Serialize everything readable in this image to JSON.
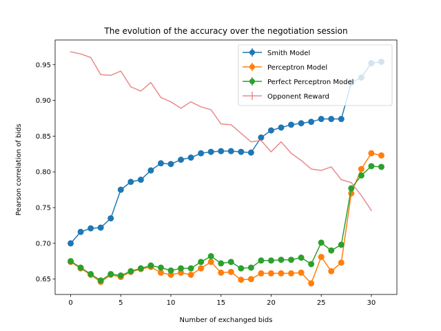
{
  "chart_data": {
    "type": "line",
    "title": "The evolution of the accuracy over the negotiation session",
    "xlabel": "Number of exchanged bids",
    "ylabel": "Pearson correlation of bids",
    "xlim": [
      -1.55,
      32.55
    ],
    "ylim": [
      0.6285,
      0.9845
    ],
    "xticks": [
      0,
      5,
      10,
      15,
      20,
      25,
      30
    ],
    "yticks": [
      0.65,
      0.7,
      0.75,
      0.8,
      0.85,
      0.9,
      0.95
    ],
    "ytick_labels": [
      "0.65",
      "0.70",
      "0.75",
      "0.80",
      "0.85",
      "0.90",
      "0.95"
    ],
    "grid": false,
    "legend_position": "top-right",
    "series": [
      {
        "name": "Smith Model",
        "color": "#1f77b4",
        "marker": "circle",
        "x": [
          0,
          1,
          2,
          3,
          4,
          5,
          6,
          7,
          8,
          9,
          10,
          11,
          12,
          13,
          14,
          15,
          16,
          17,
          18,
          19,
          20,
          21,
          22,
          23,
          24,
          25,
          26,
          27,
          28,
          29,
          30,
          31
        ],
        "values": [
          0.7,
          0.716,
          0.721,
          0.722,
          0.735,
          0.775,
          0.786,
          0.789,
          0.802,
          0.812,
          0.811,
          0.817,
          0.82,
          0.826,
          0.828,
          0.829,
          0.829,
          0.828,
          0.827,
          0.848,
          0.858,
          0.862,
          0.866,
          0.868,
          0.87,
          0.874,
          0.874,
          0.874,
          0.925,
          0.932,
          0.952,
          0.954
        ]
      },
      {
        "name": "Perceptron Model",
        "color": "#ff7f0e",
        "marker": "circle",
        "x": [
          0,
          1,
          2,
          3,
          4,
          5,
          6,
          7,
          8,
          9,
          10,
          11,
          12,
          13,
          14,
          15,
          16,
          17,
          18,
          19,
          20,
          21,
          22,
          23,
          24,
          25,
          26,
          27,
          28,
          29,
          30,
          31
        ],
        "values": [
          0.674,
          0.665,
          0.656,
          0.646,
          0.656,
          0.653,
          0.66,
          0.664,
          0.667,
          0.659,
          0.656,
          0.659,
          0.656,
          0.665,
          0.674,
          0.659,
          0.66,
          0.649,
          0.65,
          0.658,
          0.658,
          0.658,
          0.658,
          0.659,
          0.644,
          0.681,
          0.661,
          0.673,
          0.77,
          0.804,
          0.826,
          0.823
        ]
      },
      {
        "name": "Perfect Perceptron Model",
        "color": "#2ca02c",
        "marker": "circle",
        "x": [
          0,
          1,
          2,
          3,
          4,
          5,
          6,
          7,
          8,
          9,
          10,
          11,
          12,
          13,
          14,
          15,
          16,
          17,
          18,
          19,
          20,
          21,
          22,
          23,
          24,
          25,
          26,
          27,
          28,
          29,
          30,
          31
        ],
        "values": [
          0.675,
          0.666,
          0.657,
          0.648,
          0.657,
          0.655,
          0.661,
          0.665,
          0.669,
          0.666,
          0.662,
          0.665,
          0.665,
          0.674,
          0.682,
          0.672,
          0.674,
          0.665,
          0.666,
          0.676,
          0.676,
          0.677,
          0.677,
          0.68,
          0.671,
          0.701,
          0.69,
          0.698,
          0.777,
          0.795,
          0.808,
          0.807
        ]
      },
      {
        "name": "Opponent Reward",
        "color": "#e88a8a",
        "marker": "none",
        "x": [
          0,
          1,
          2,
          3,
          4,
          5,
          6,
          7,
          8,
          9,
          10,
          11,
          12,
          13,
          14,
          15,
          16,
          17,
          18,
          19,
          20,
          21,
          22,
          23,
          24,
          25,
          26,
          27,
          28,
          29,
          30
        ],
        "values": [
          0.968,
          0.965,
          0.96,
          0.936,
          0.935,
          0.941,
          0.919,
          0.913,
          0.925,
          0.904,
          0.898,
          0.889,
          0.898,
          0.891,
          0.887,
          0.867,
          0.866,
          0.854,
          0.842,
          0.844,
          0.828,
          0.842,
          0.826,
          0.816,
          0.804,
          0.802,
          0.807,
          0.789,
          0.785,
          0.767,
          0.746
        ]
      }
    ]
  }
}
